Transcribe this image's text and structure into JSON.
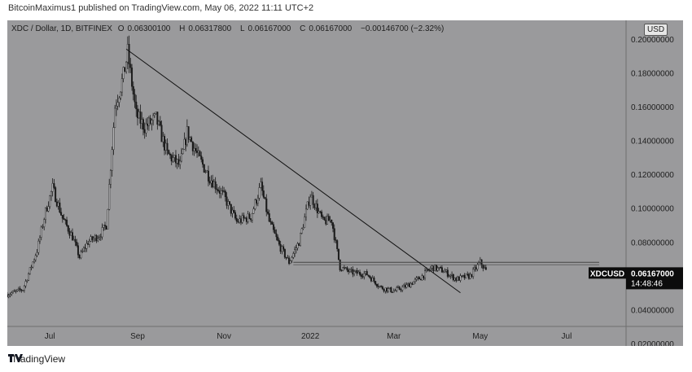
{
  "header": {
    "published": "BitcoinMaximus1 published on TradingView.com, May 06, 2022 11:11 UTC+2"
  },
  "legend": {
    "symbol": "XDC / Dollar, 1D, BITFINEX",
    "o_label": "O",
    "o": "0.06300100",
    "h_label": "H",
    "h": "0.06317800",
    "l_label": "L",
    "l": "0.06167000",
    "c_label": "C",
    "c": "0.06167000",
    "change": "−0.00146700 (−2.32%)"
  },
  "currency_badge": "USD",
  "footer": {
    "brand": "TradingView"
  },
  "colors": {
    "background": "#9a9a9c",
    "candles": "#1a1a1a",
    "trendline": "#111111",
    "price_tag": "#0c0c0c"
  },
  "chart_data": {
    "type": "candlestick",
    "symbol": "XDCUSD",
    "title": "XDC / Dollar, 1D, BITFINEX",
    "ylim": [
      0.02,
      0.21
    ],
    "grid": false,
    "y_tick_labels": [
      "0.02000000",
      "0.04000000",
      "0.06000000",
      "0.08000000",
      "0.10000000",
      "0.12000000",
      "0.14000000",
      "0.16000000",
      "0.18000000",
      "0.20000000",
      "0.2000"
    ],
    "x_tick_labels": [
      "Jul",
      "Sep",
      "Nov",
      "2022",
      "Mar",
      "May",
      "Jul"
    ],
    "x_ticks": [
      "2021-07-01",
      "2021-09-01",
      "2021-11-01",
      "2022-01-01",
      "2022-03-01",
      "2022-05-01",
      "2022-07-01"
    ],
    "x_range": [
      "2021-06-01",
      "2022-08-12"
    ],
    "last_price": {
      "label": "XDCUSD",
      "value": "0.06167000",
      "countdown": "14:48:46"
    },
    "price_path": [
      [
        "2021-06-01",
        0.049
      ],
      [
        "2021-06-12",
        0.052
      ],
      [
        "2021-06-22",
        0.075
      ],
      [
        "2021-06-28",
        0.098
      ],
      [
        "2021-07-03",
        0.112
      ],
      [
        "2021-07-10",
        0.094
      ],
      [
        "2021-07-17",
        0.083
      ],
      [
        "2021-07-22",
        0.071
      ],
      [
        "2021-07-28",
        0.08
      ],
      [
        "2021-08-05",
        0.084
      ],
      [
        "2021-08-10",
        0.09
      ],
      [
        "2021-08-16",
        0.16
      ],
      [
        "2021-08-22",
        0.178
      ],
      [
        "2021-08-25",
        0.192
      ],
      [
        "2021-08-31",
        0.155
      ],
      [
        "2021-09-06",
        0.148
      ],
      [
        "2021-09-14",
        0.153
      ],
      [
        "2021-09-22",
        0.132
      ],
      [
        "2021-10-01",
        0.125
      ],
      [
        "2021-10-06",
        0.145
      ],
      [
        "2021-10-14",
        0.13
      ],
      [
        "2021-10-22",
        0.118
      ],
      [
        "2021-11-01",
        0.107
      ],
      [
        "2021-11-10",
        0.092
      ],
      [
        "2021-11-20",
        0.095
      ],
      [
        "2021-11-27",
        0.113
      ],
      [
        "2021-12-03",
        0.092
      ],
      [
        "2021-12-10",
        0.078
      ],
      [
        "2021-12-17",
        0.068
      ],
      [
        "2021-12-24",
        0.08
      ],
      [
        "2022-01-01",
        0.108
      ],
      [
        "2022-01-10",
        0.092
      ],
      [
        "2022-01-16",
        0.093
      ],
      [
        "2022-01-22",
        0.065
      ],
      [
        "2022-01-30",
        0.062
      ],
      [
        "2022-02-10",
        0.061
      ],
      [
        "2022-02-20",
        0.053
      ],
      [
        "2022-03-01",
        0.051
      ],
      [
        "2022-03-10",
        0.054
      ],
      [
        "2022-03-20",
        0.059
      ],
      [
        "2022-03-28",
        0.065
      ],
      [
        "2022-04-05",
        0.063
      ],
      [
        "2022-04-14",
        0.058
      ],
      [
        "2022-04-24",
        0.06
      ],
      [
        "2022-05-01",
        0.068
      ],
      [
        "2022-05-06",
        0.06167
      ]
    ],
    "trendline": {
      "from": [
        "2021-08-24",
        0.194
      ],
      "to": [
        "2022-04-17",
        0.05
      ]
    },
    "resistance": {
      "value": 0.068,
      "from": "2021-12-20",
      "to": "2022-07-24"
    },
    "annotations": [
      "Descending resistance line from the August 2021 high",
      "Horizontal resistance near 0.068"
    ]
  }
}
